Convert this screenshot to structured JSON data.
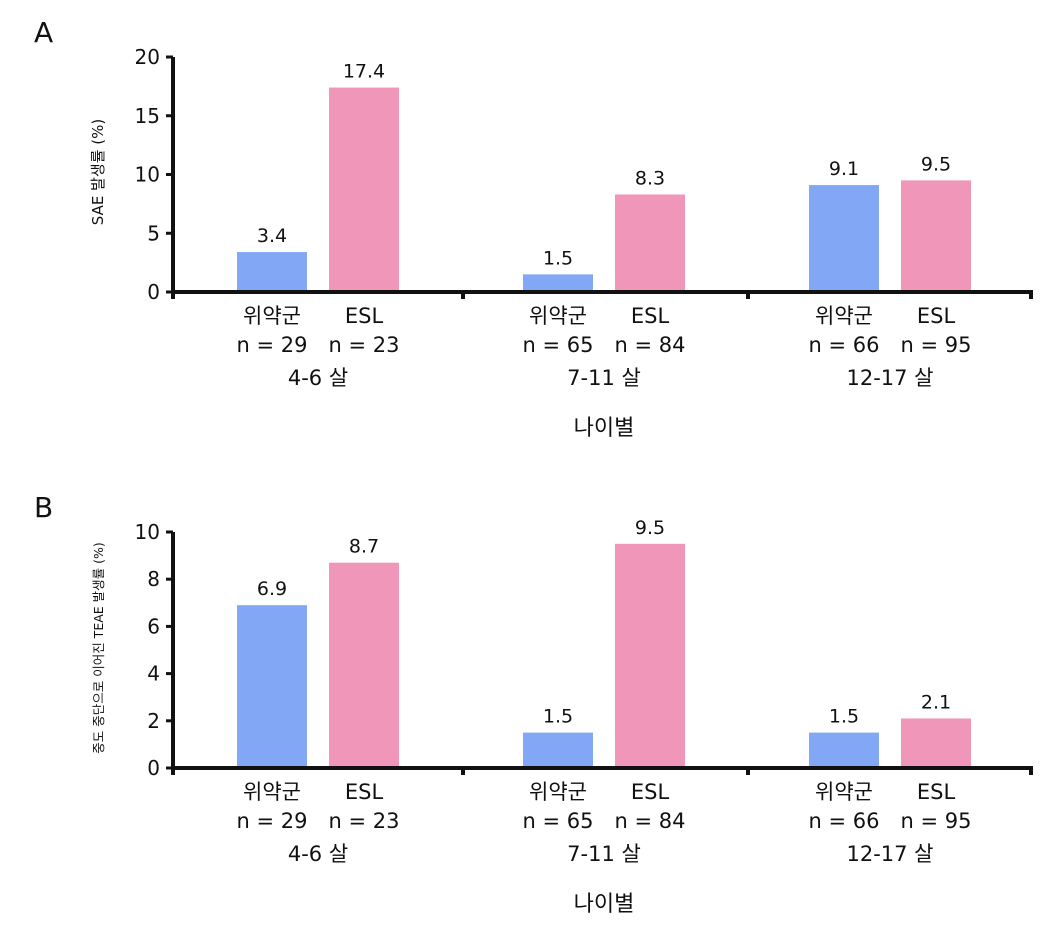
{
  "chart_data": [
    {
      "panel": "A",
      "type": "bar",
      "ylabel": "SAE 발생률 (%)",
      "xlabel": "나이별",
      "ylim": [
        0,
        20
      ],
      "yticks": [
        "0",
        "5",
        "10",
        "15",
        "20"
      ],
      "groups": [
        {
          "age": "4-6 살",
          "bars": [
            {
              "name": "위약군",
              "n": "n = 29",
              "value": 3.4,
              "label": "3.4"
            },
            {
              "name": "ESL",
              "n": "n = 23",
              "value": 17.4,
              "label": "17.4"
            }
          ]
        },
        {
          "age": "7-11 살",
          "bars": [
            {
              "name": "위약군",
              "n": "n = 65",
              "value": 1.5,
              "label": "1.5"
            },
            {
              "name": "ESL",
              "n": "n = 84",
              "value": 8.3,
              "label": "8.3"
            }
          ]
        },
        {
          "age": "12-17 살",
          "bars": [
            {
              "name": "위약군",
              "n": "n = 66",
              "value": 9.1,
              "label": "9.1"
            },
            {
              "name": "ESL",
              "n": "n = 95",
              "value": 9.5,
              "label": "9.5"
            }
          ]
        }
      ]
    },
    {
      "panel": "B",
      "type": "bar",
      "ylabel": "중도 중단으로 이어진 TEAE 발생률 (%)",
      "xlabel": "나이별",
      "ylim": [
        0,
        10
      ],
      "yticks": [
        "0",
        "2",
        "4",
        "6",
        "8",
        "10"
      ],
      "groups": [
        {
          "age": "4-6 살",
          "bars": [
            {
              "name": "위약군",
              "n": "n = 29",
              "value": 6.9,
              "label": "6.9"
            },
            {
              "name": "ESL",
              "n": "n = 23",
              "value": 8.7,
              "label": "8.7"
            }
          ]
        },
        {
          "age": "7-11 살",
          "bars": [
            {
              "name": "위약군",
              "n": "n = 65",
              "value": 1.5,
              "label": "1.5"
            },
            {
              "name": "ESL",
              "n": "n = 84",
              "value": 9.5,
              "label": "9.5"
            }
          ]
        },
        {
          "age": "12-17 살",
          "bars": [
            {
              "name": "위약군",
              "n": "n = 66",
              "value": 1.5,
              "label": "1.5"
            },
            {
              "name": "ESL",
              "n": "n = 95",
              "value": 2.1,
              "label": "2.1"
            }
          ]
        }
      ]
    }
  ],
  "colors": {
    "placebo": "#82a8f5",
    "esl": "#f097b9",
    "axis": "#111111"
  }
}
